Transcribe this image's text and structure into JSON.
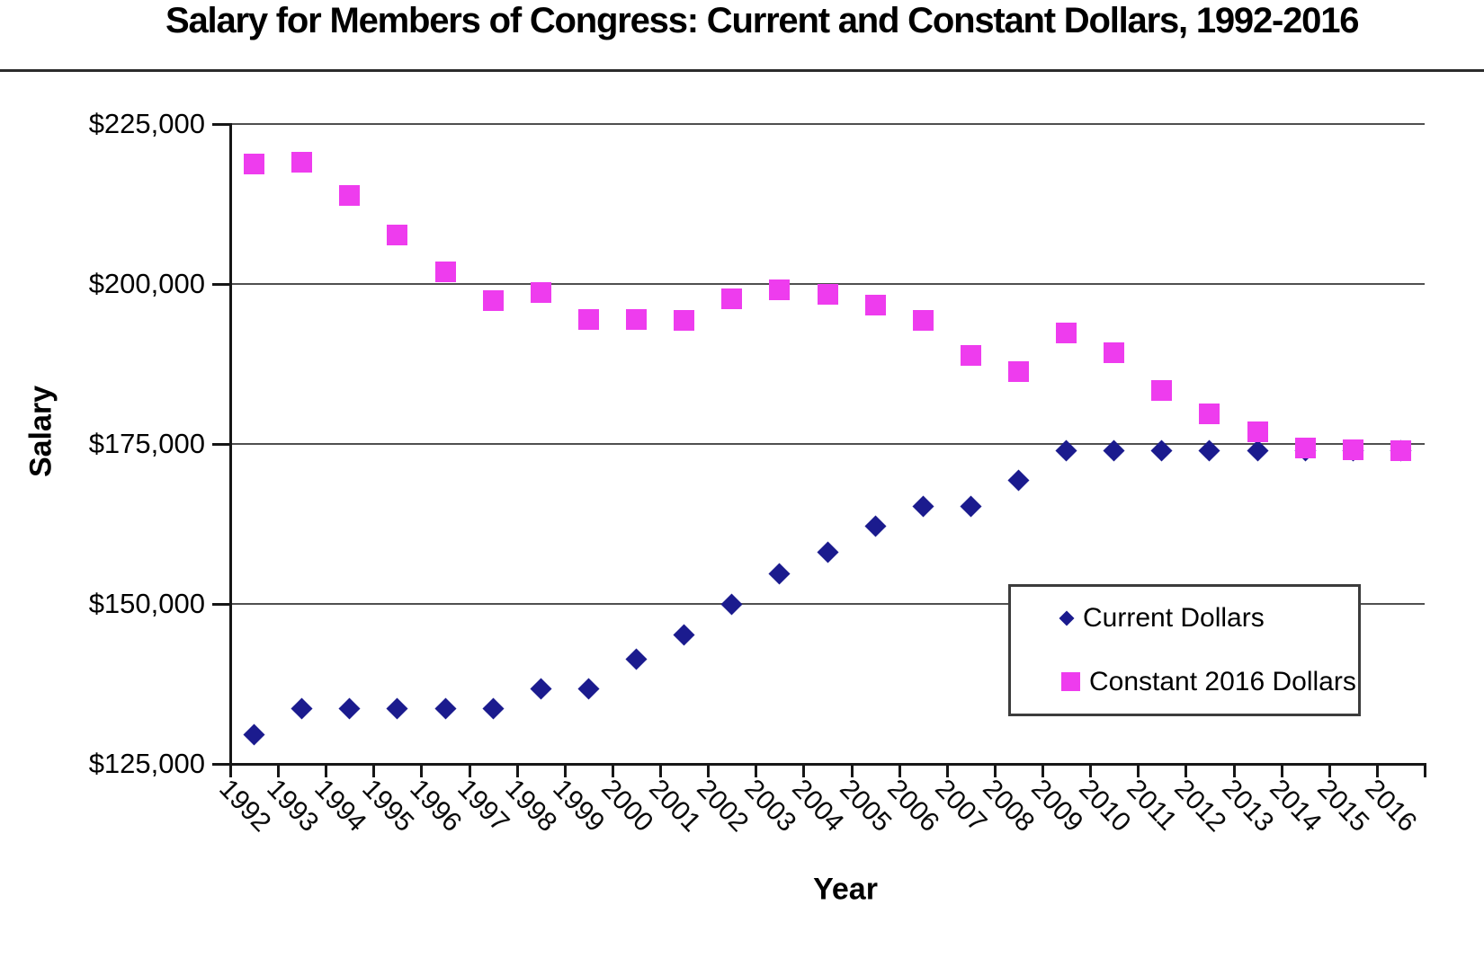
{
  "title": "Salary for Members of Congress: Current and Constant Dollars, 1992-2016",
  "chart_data": {
    "type": "scatter",
    "title": "Salary for Members of Congress: Current and Constant Dollars, 1992-2016",
    "xlabel": "Year",
    "ylabel": "Salary",
    "x": [
      1992,
      1993,
      1994,
      1995,
      1996,
      1997,
      1998,
      1999,
      2000,
      2001,
      2002,
      2003,
      2004,
      2005,
      2006,
      2007,
      2008,
      2009,
      2010,
      2011,
      2012,
      2013,
      2014,
      2015,
      2016
    ],
    "series": [
      {
        "name": "Current Dollars",
        "marker": "diamond",
        "color": "#1b1b8e",
        "values": [
          129500,
          133600,
          133600,
          133600,
          133600,
          133600,
          136700,
          136700,
          141300,
          145100,
          150000,
          154700,
          158100,
          162100,
          165200,
          165200,
          169300,
          174000,
          174000,
          174000,
          174000,
          174000,
          174000,
          174000,
          174000
        ]
      },
      {
        "name": "Constant 2016 Dollars",
        "marker": "square",
        "color": "#ee3cee",
        "values": [
          218700,
          219100,
          213800,
          207600,
          201900,
          197400,
          198700,
          194500,
          194500,
          194300,
          197700,
          199100,
          198400,
          196700,
          194300,
          188800,
          186300,
          192300,
          189200,
          183400,
          179700,
          176900,
          174300,
          174100,
          174000
        ]
      }
    ],
    "ylim": [
      125000,
      225000
    ],
    "yticks": [
      {
        "value": 125000,
        "label": "$125,000"
      },
      {
        "value": 150000,
        "label": "$150,000"
      },
      {
        "value": 175000,
        "label": "$175,000"
      },
      {
        "value": 200000,
        "label": "$200,000"
      },
      {
        "value": 225000,
        "label": "$225,000"
      }
    ],
    "grid": "horizontal",
    "legend_position": "inside-bottom-right",
    "legend_labels": [
      "Current Dollars",
      "Constant 2016 Dollars"
    ]
  }
}
